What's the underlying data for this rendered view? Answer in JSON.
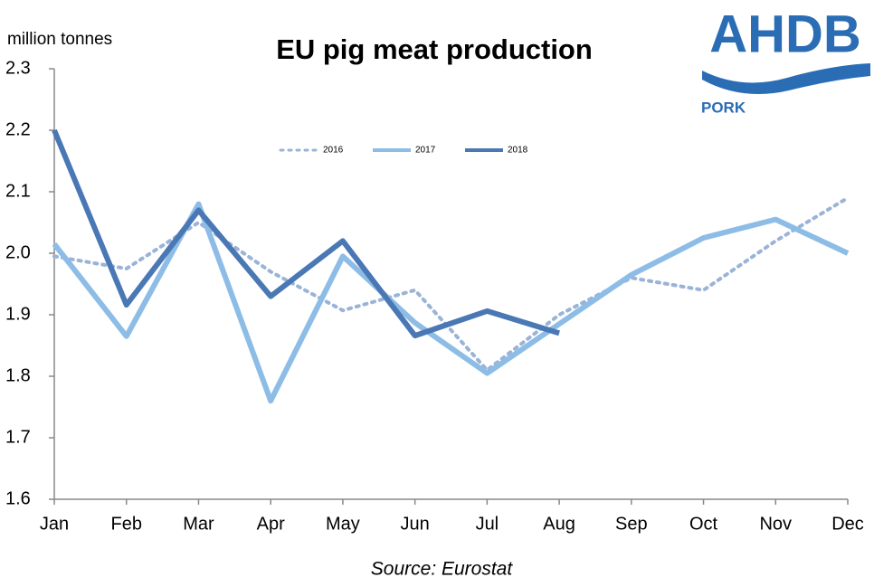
{
  "chart_data": {
    "type": "line",
    "title": "EU pig meat production",
    "y_label": "million tonnes",
    "source": "Source: Eurostat",
    "categories": [
      "Jan",
      "Feb",
      "Mar",
      "Apr",
      "May",
      "Jun",
      "Jul",
      "Aug",
      "Sep",
      "Oct",
      "Nov",
      "Dec"
    ],
    "series": [
      {
        "name": "2016",
        "color": "#9ab3d6",
        "line_style": "dotted",
        "values": [
          1.995,
          1.975,
          2.05,
          1.97,
          1.907,
          1.94,
          1.81,
          1.9,
          1.96,
          1.94,
          2.02,
          2.09
        ]
      },
      {
        "name": "2017",
        "color": "#8dbde6",
        "line_style": "solid",
        "values": [
          2.015,
          1.865,
          2.08,
          1.76,
          1.995,
          1.887,
          1.805,
          1.885,
          1.965,
          2.025,
          2.055,
          2.0
        ]
      },
      {
        "name": "2018",
        "color": "#4a78b5",
        "line_style": "solid",
        "values": [
          2.2,
          1.916,
          2.07,
          1.93,
          2.02,
          1.866,
          1.906,
          1.87,
          null,
          null,
          null,
          null
        ]
      }
    ],
    "ylim": [
      1.6,
      2.3
    ],
    "yticks": [
      1.6,
      1.7,
      1.8,
      1.9,
      {
        "value": 2,
        "label": "2.0"
      },
      2.1,
      2.2,
      2.3
    ],
    "grid": false,
    "legend": "top"
  },
  "logo": {
    "name": "AHDB",
    "division": "PORK"
  }
}
